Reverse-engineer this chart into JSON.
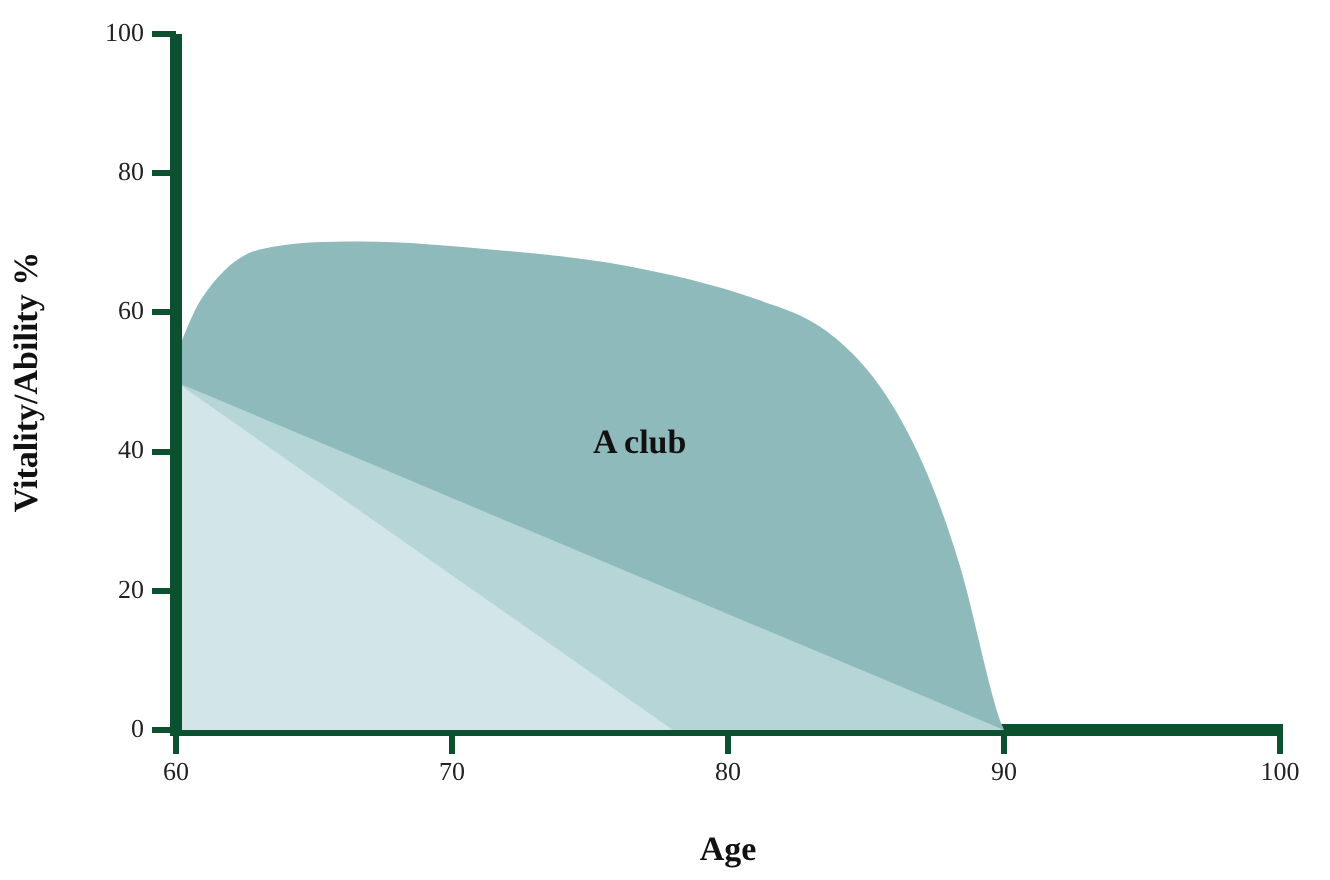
{
  "chart_data": {
    "type": "area",
    "xlabel": "Age",
    "ylabel": "Vitality/Ability %",
    "series": [
      {
        "color": "#8fbabb",
        "x": [
          60,
          60.9,
          63,
          66.7,
          71.5,
          76.3,
          81.1,
          83.5,
          85.5,
          87.1,
          88.4,
          89.8,
          90
        ],
        "values": [
          54,
          61.8,
          69,
          70.2,
          69,
          66.7,
          61.8,
          57.5,
          49.4,
          37.9,
          23.6,
          2,
          0
        ]
      },
      {
        "color": "#b5d5d7",
        "x": [
          60,
          90
        ],
        "values": [
          50,
          0
        ]
      },
      {
        "color": "#d2e6e9",
        "x": [
          60,
          78
        ],
        "values": [
          50,
          0
        ]
      }
    ],
    "xlim": [
      60,
      100
    ],
    "xticks": [
      60,
      70,
      80,
      90,
      100
    ],
    "ylim": [
      0,
      100
    ],
    "yticks": [
      0,
      20,
      40,
      60,
      80,
      100
    ],
    "annotations": [
      "A club"
    ],
    "grid": false,
    "legend": false,
    "marker": "none"
  }
}
